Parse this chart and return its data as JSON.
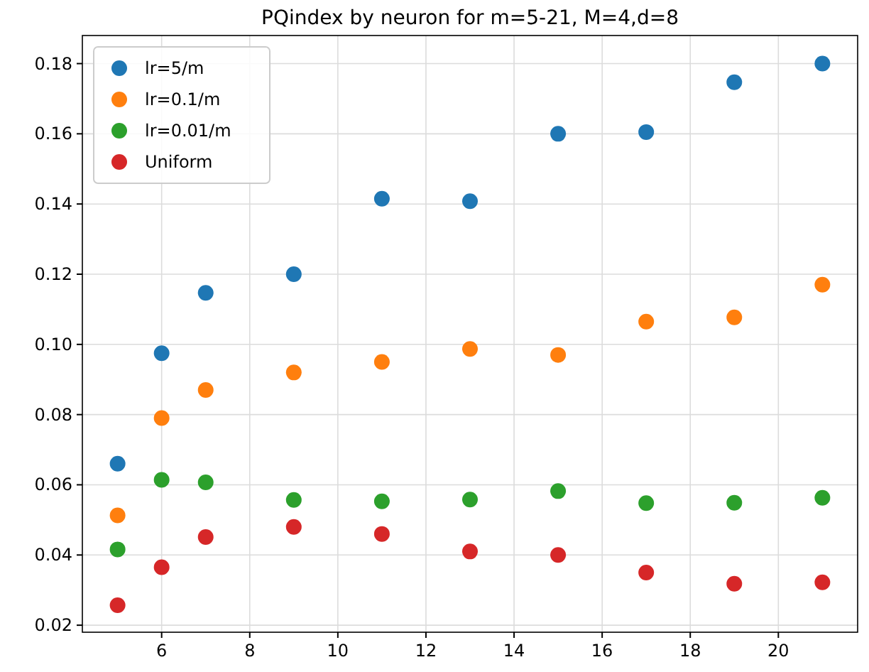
{
  "chart_data": {
    "type": "scatter",
    "title": "PQindex by neuron for m=5-21, M=4,d=8",
    "x": [
      5,
      6,
      7,
      9,
      11,
      13,
      15,
      17,
      19,
      21
    ],
    "series": [
      {
        "name": "lr=5/m",
        "color": "#1f77b4",
        "values": [
          0.066,
          0.0975,
          0.1147,
          0.12,
          0.1415,
          0.1408,
          0.16,
          0.1605,
          0.1747,
          0.18
        ]
      },
      {
        "name": "lr=0.1/m",
        "color": "#ff7f0e",
        "values": [
          0.0513,
          0.079,
          0.087,
          0.092,
          0.095,
          0.0987,
          0.097,
          0.1065,
          0.1077,
          0.117
        ]
      },
      {
        "name": "lr=0.01/m",
        "color": "#2ca02c",
        "values": [
          0.0416,
          0.0614,
          0.0607,
          0.0557,
          0.0553,
          0.0558,
          0.0582,
          0.0548,
          0.0549,
          0.0563
        ]
      },
      {
        "name": "Uniform",
        "color": "#d62728",
        "values": [
          0.0257,
          0.0365,
          0.0451,
          0.048,
          0.046,
          0.041,
          0.04,
          0.035,
          0.0318,
          0.0322
        ]
      }
    ],
    "xlim": [
      4.2,
      21.8
    ],
    "xticks": [
      6,
      8,
      10,
      12,
      14,
      16,
      18,
      20
    ],
    "ylim": [
      0.018,
      0.188
    ],
    "yticks": [
      {
        "value": 0.02,
        "label": "0.02"
      },
      {
        "value": 0.04,
        "label": "0.04"
      },
      {
        "value": 0.06,
        "label": "0.06"
      },
      {
        "value": 0.08,
        "label": "0.08"
      },
      {
        "value": 0.1,
        "label": "0.10"
      },
      {
        "value": 0.12,
        "label": "0.12"
      },
      {
        "value": 0.14,
        "label": "0.14"
      },
      {
        "value": 0.16,
        "label": "0.16"
      },
      {
        "value": 0.18,
        "label": "0.18"
      }
    ],
    "grid": true,
    "legend": "top left",
    "marker": "circle"
  }
}
